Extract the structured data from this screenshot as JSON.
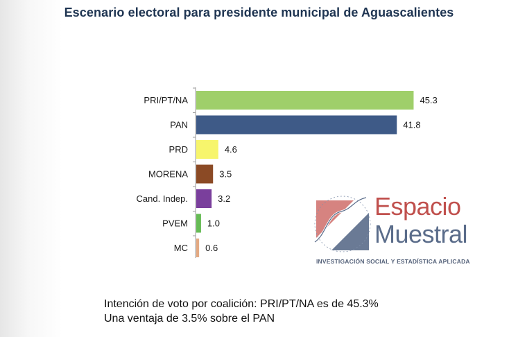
{
  "chart_data": {
    "type": "bar",
    "orientation": "horizontal",
    "title": "Escenario electoral para presidente municipal de Aguascalientes",
    "categories": [
      "PRI/PT/NA",
      "PAN",
      "PRD",
      "MORENA",
      "Cand. Indep.",
      "PVEM",
      "MC"
    ],
    "values": [
      45.3,
      41.8,
      4.6,
      3.5,
      3.2,
      1.0,
      0.6
    ],
    "value_labels": [
      "45.3",
      "41.8",
      "4.6",
      "3.5",
      "3.2",
      "1.0",
      "0.6"
    ],
    "colors": [
      "#9fcf6a",
      "#3e5a87",
      "#f7f56c",
      "#8b4a25",
      "#7a3f9c",
      "#66bb55",
      "#e3a982"
    ],
    "xlim": [
      0,
      50
    ],
    "grid": false,
    "legend": "none"
  },
  "logo": {
    "line1": "Espacio",
    "line2": "Muestral",
    "tagline": "INVESTIGACIÓN SOCIAL Y ESTADÍSTICA APLICADA",
    "primary_color": "#c0504d",
    "secondary_color": "#5a6c8a"
  },
  "footnote": {
    "line1": "Intención de voto por coalición: PRI/PT/NA es de 45.3%",
    "line2": "Una ventaja de 3.5% sobre el PAN"
  }
}
